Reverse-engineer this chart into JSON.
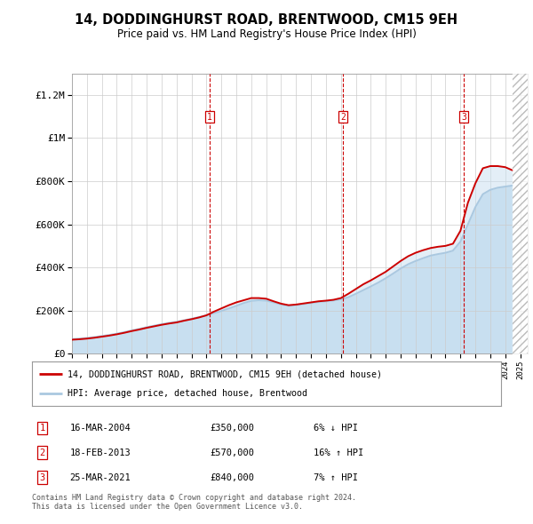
{
  "title": "14, DODDINGHURST ROAD, BRENTWOOD, CM15 9EH",
  "subtitle": "Price paid vs. HM Land Registry's House Price Index (HPI)",
  "legend_line1": "14, DODDINGHURST ROAD, BRENTWOOD, CM15 9EH (detached house)",
  "legend_line2": "HPI: Average price, detached house, Brentwood",
  "footnote1": "Contains HM Land Registry data © Crown copyright and database right 2024.",
  "footnote2": "This data is licensed under the Open Government Licence v3.0.",
  "transactions": [
    {
      "num": 1,
      "date": "16-MAR-2004",
      "price": 350000,
      "pct": "6%",
      "dir": "↓",
      "year": 2004.21
    },
    {
      "num": 2,
      "date": "18-FEB-2013",
      "price": 570000,
      "pct": "16%",
      "dir": "↑",
      "year": 2013.13
    },
    {
      "num": 3,
      "date": "25-MAR-2021",
      "price": 840000,
      "pct": "7%",
      "dir": "↑",
      "year": 2021.23
    }
  ],
  "hpi_color": "#aac8e0",
  "price_color": "#cc0000",
  "fill_color": "#c8dff0",
  "background_color": "#ffffff",
  "grid_color": "#cccccc",
  "ylim": [
    0,
    1300000
  ],
  "yticks": [
    0,
    200000,
    400000,
    600000,
    800000,
    1000000,
    1200000
  ],
  "ytick_labels": [
    "£0",
    "£200K",
    "£400K",
    "£600K",
    "£800K",
    "£1M",
    "£1.2M"
  ],
  "hpi_x": [
    1995.0,
    1995.5,
    1996.0,
    1996.5,
    1997.0,
    1997.5,
    1998.0,
    1998.5,
    1999.0,
    1999.5,
    2000.0,
    2000.5,
    2001.0,
    2001.5,
    2002.0,
    2002.5,
    2003.0,
    2003.5,
    2004.0,
    2004.5,
    2005.0,
    2005.5,
    2006.0,
    2006.5,
    2007.0,
    2007.5,
    2008.0,
    2008.5,
    2009.0,
    2009.5,
    2010.0,
    2010.5,
    2011.0,
    2011.5,
    2012.0,
    2012.5,
    2013.0,
    2013.5,
    2014.0,
    2014.5,
    2015.0,
    2015.5,
    2016.0,
    2016.5,
    2017.0,
    2017.5,
    2018.0,
    2018.5,
    2019.0,
    2019.5,
    2020.0,
    2020.5,
    2021.0,
    2021.5,
    2022.0,
    2022.5,
    2023.0,
    2023.5,
    2024.0,
    2024.5
  ],
  "hpi_y": [
    68000,
    70000,
    73000,
    77000,
    82000,
    87000,
    93000,
    100000,
    108000,
    115000,
    123000,
    130000,
    137000,
    143000,
    148000,
    155000,
    162000,
    170000,
    178000,
    188000,
    198000,
    210000,
    222000,
    235000,
    245000,
    248000,
    246000,
    238000,
    228000,
    222000,
    225000,
    230000,
    235000,
    240000,
    243000,
    247000,
    252000,
    262000,
    278000,
    295000,
    312000,
    330000,
    350000,
    372000,
    395000,
    415000,
    430000,
    443000,
    455000,
    462000,
    468000,
    478000,
    520000,
    600000,
    680000,
    740000,
    760000,
    770000,
    775000,
    780000
  ],
  "price_x": [
    1995.0,
    1995.5,
    1996.0,
    1996.5,
    1997.0,
    1997.5,
    1998.0,
    1998.5,
    1999.0,
    1999.5,
    2000.0,
    2000.5,
    2001.0,
    2001.5,
    2002.0,
    2002.5,
    2003.0,
    2003.5,
    2004.0,
    2004.5,
    2005.0,
    2005.5,
    2006.0,
    2006.5,
    2007.0,
    2007.5,
    2008.0,
    2008.5,
    2009.0,
    2009.5,
    2010.0,
    2010.5,
    2011.0,
    2011.5,
    2012.0,
    2012.5,
    2013.0,
    2013.5,
    2014.0,
    2014.5,
    2015.0,
    2015.5,
    2016.0,
    2016.5,
    2017.0,
    2017.5,
    2018.0,
    2018.5,
    2019.0,
    2019.5,
    2020.0,
    2020.5,
    2021.0,
    2021.5,
    2022.0,
    2022.5,
    2023.0,
    2023.5,
    2024.0,
    2024.5
  ],
  "price_y": [
    65000,
    67000,
    70000,
    74000,
    79000,
    84000,
    90000,
    97000,
    105000,
    112000,
    120000,
    127000,
    134000,
    140000,
    145000,
    153000,
    160000,
    168000,
    178000,
    195000,
    210000,
    225000,
    238000,
    248000,
    258000,
    258000,
    255000,
    243000,
    232000,
    225000,
    228000,
    233000,
    238000,
    243000,
    246000,
    250000,
    258000,
    278000,
    300000,
    322000,
    340000,
    360000,
    380000,
    405000,
    430000,
    452000,
    468000,
    480000,
    490000,
    496000,
    500000,
    510000,
    570000,
    700000,
    790000,
    860000,
    870000,
    870000,
    865000,
    850000
  ],
  "xmin": 1995,
  "xmax": 2025.5,
  "hatch_start": 2024.5
}
